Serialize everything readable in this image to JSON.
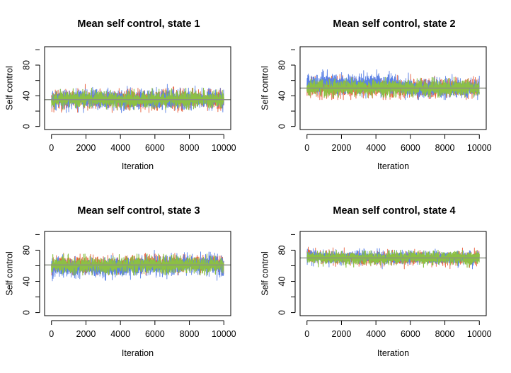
{
  "colors": {
    "chain_1": "#e8613f",
    "chain_2": "#5b82e6",
    "chain_3": "#8cc043",
    "mean_line": "#8a8f84",
    "axis": "#000000"
  },
  "chart_data": [
    {
      "type": "line",
      "title": "Mean self control, state 1",
      "xlabel": "Iteration",
      "ylabel": "Self control",
      "xlim": [
        0,
        10000
      ],
      "ylim": [
        0,
        100
      ],
      "xticks": [
        0,
        2000,
        4000,
        6000,
        8000,
        10000
      ],
      "yticks": [
        0,
        40,
        80
      ],
      "grid": false,
      "reference_line": 35,
      "series": [
        {
          "values": [
            {
              "x": 0,
              "y": 35
            },
            {
              "x": 2000,
              "y": 35
            },
            {
              "x": 4000,
              "y": 35
            },
            {
              "x": 6000,
              "y": 35
            },
            {
              "x": 8000,
              "y": 35
            },
            {
              "x": 10000,
              "y": 35
            }
          ],
          "spread": 6,
          "range": [
            18,
            55
          ]
        },
        {
          "values": [
            {
              "x": 0,
              "y": 35
            },
            {
              "x": 2000,
              "y": 36
            },
            {
              "x": 4000,
              "y": 35
            },
            {
              "x": 6000,
              "y": 35
            },
            {
              "x": 8000,
              "y": 35
            },
            {
              "x": 10000,
              "y": 35
            }
          ],
          "spread": 6,
          "range": [
            18,
            55
          ]
        },
        {
          "values": [
            {
              "x": 0,
              "y": 35
            },
            {
              "x": 2000,
              "y": 35
            },
            {
              "x": 4000,
              "y": 35
            },
            {
              "x": 6000,
              "y": 35
            },
            {
              "x": 8000,
              "y": 35
            },
            {
              "x": 10000,
              "y": 35
            }
          ],
          "spread": 5,
          "range": [
            22,
            50
          ]
        }
      ]
    },
    {
      "type": "line",
      "title": "Mean self control, state 2",
      "xlabel": "Iteration",
      "ylabel": "Self control",
      "xlim": [
        0,
        10000
      ],
      "ylim": [
        0,
        100
      ],
      "xticks": [
        0,
        2000,
        4000,
        6000,
        8000,
        10000
      ],
      "yticks": [
        0,
        40,
        80
      ],
      "grid": false,
      "reference_line": 50,
      "series": [
        {
          "values": [
            {
              "x": 0,
              "y": 50
            },
            {
              "x": 2000,
              "y": 50
            },
            {
              "x": 4000,
              "y": 50
            },
            {
              "x": 6000,
              "y": 50
            },
            {
              "x": 8000,
              "y": 50
            },
            {
              "x": 10000,
              "y": 50
            }
          ],
          "spread": 6,
          "range": [
            35,
            68
          ]
        },
        {
          "values": [
            {
              "x": 0,
              "y": 57
            },
            {
              "x": 2000,
              "y": 57
            },
            {
              "x": 4000,
              "y": 56
            },
            {
              "x": 6000,
              "y": 50
            },
            {
              "x": 8000,
              "y": 49
            },
            {
              "x": 10000,
              "y": 50
            }
          ],
          "spread": 6,
          "range": [
            35,
            74
          ]
        },
        {
          "values": [
            {
              "x": 0,
              "y": 50
            },
            {
              "x": 2000,
              "y": 50
            },
            {
              "x": 4000,
              "y": 50
            },
            {
              "x": 6000,
              "y": 50
            },
            {
              "x": 8000,
              "y": 50
            },
            {
              "x": 10000,
              "y": 50
            }
          ],
          "spread": 5,
          "range": [
            38,
            64
          ]
        }
      ]
    },
    {
      "type": "line",
      "title": "Mean self control, state 3",
      "xlabel": "Iteration",
      "ylabel": "Self control",
      "xlim": [
        0,
        10000
      ],
      "ylim": [
        0,
        100
      ],
      "xticks": [
        0,
        2000,
        4000,
        6000,
        8000,
        10000
      ],
      "yticks": [
        0,
        40,
        80
      ],
      "grid": false,
      "reference_line": 61,
      "series": [
        {
          "values": [
            {
              "x": 0,
              "y": 62
            },
            {
              "x": 2000,
              "y": 61
            },
            {
              "x": 4000,
              "y": 62
            },
            {
              "x": 6000,
              "y": 63
            },
            {
              "x": 8000,
              "y": 63
            },
            {
              "x": 10000,
              "y": 62
            }
          ],
          "spread": 5,
          "range": [
            48,
            76
          ]
        },
        {
          "values": [
            {
              "x": 0,
              "y": 58
            },
            {
              "x": 2000,
              "y": 57
            },
            {
              "x": 4000,
              "y": 58
            },
            {
              "x": 6000,
              "y": 60
            },
            {
              "x": 8000,
              "y": 62
            },
            {
              "x": 10000,
              "y": 61
            }
          ],
          "spread": 6,
          "range": [
            38,
            80
          ]
        },
        {
          "values": [
            {
              "x": 0,
              "y": 61
            },
            {
              "x": 2000,
              "y": 61
            },
            {
              "x": 4000,
              "y": 61
            },
            {
              "x": 6000,
              "y": 61
            },
            {
              "x": 8000,
              "y": 61
            },
            {
              "x": 10000,
              "y": 61
            }
          ],
          "spread": 5,
          "range": [
            48,
            75
          ]
        }
      ]
    },
    {
      "type": "line",
      "title": "Mean self control, state 4",
      "xlabel": "Iteration",
      "ylabel": "Self control",
      "xlim": [
        0,
        10000
      ],
      "ylim": [
        0,
        100
      ],
      "xticks": [
        0,
        2000,
        4000,
        6000,
        8000,
        10000
      ],
      "yticks": [
        0,
        40,
        80
      ],
      "grid": false,
      "reference_line": 70,
      "series": [
        {
          "values": [
            {
              "x": 0,
              "y": 78
            },
            {
              "x": 500,
              "y": 71
            },
            {
              "x": 2000,
              "y": 69
            },
            {
              "x": 4000,
              "y": 69
            },
            {
              "x": 6000,
              "y": 70
            },
            {
              "x": 8000,
              "y": 69
            },
            {
              "x": 10000,
              "y": 70
            }
          ],
          "spread": 4,
          "range": [
            48,
            84
          ]
        },
        {
          "values": [
            {
              "x": 0,
              "y": 72
            },
            {
              "x": 2000,
              "y": 71
            },
            {
              "x": 4000,
              "y": 71
            },
            {
              "x": 6000,
              "y": 71
            },
            {
              "x": 8000,
              "y": 70
            },
            {
              "x": 10000,
              "y": 70
            }
          ],
          "spread": 4,
          "range": [
            56,
            82
          ]
        },
        {
          "values": [
            {
              "x": 0,
              "y": 70
            },
            {
              "x": 2000,
              "y": 70
            },
            {
              "x": 4000,
              "y": 70
            },
            {
              "x": 6000,
              "y": 70
            },
            {
              "x": 8000,
              "y": 70
            },
            {
              "x": 10000,
              "y": 70
            }
          ],
          "spread": 4,
          "range": [
            58,
            80
          ]
        }
      ]
    }
  ]
}
